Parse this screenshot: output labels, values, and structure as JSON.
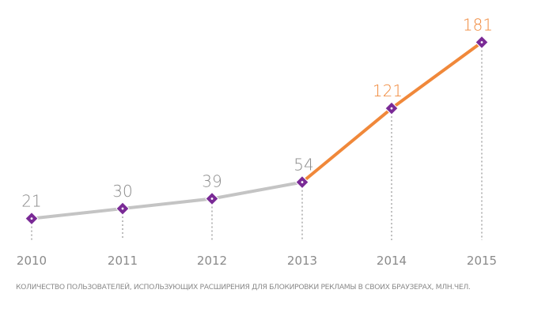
{
  "chart_data": {
    "type": "line",
    "x": [
      "2010",
      "2011",
      "2012",
      "2013",
      "2014",
      "2015"
    ],
    "values": [
      21,
      30,
      39,
      54,
      121,
      181
    ],
    "data_labels": [
      "21",
      "30",
      "39",
      "54",
      "121",
      "181"
    ],
    "segment_colors": {
      "historical": "#c4c4c4",
      "growth": "#f0883a"
    },
    "label_colors": {
      "historical": "#8a8a8a",
      "growth": "#f0883a"
    },
    "marker_color": "#7a2a96",
    "tick_color": "#8a8a8a",
    "grid": false,
    "legend": "none",
    "caption": "КОЛИЧЕСТВО ПОЛЬЗОВАТЕЛЕЙ, ИСПОЛЬЗУЮЩИХ РАСШИРЕНИЯ ДЛЯ БЛОКИРОВКИ РЕКЛАМЫ В СВОИХ БРАУЗЕРАХ, МЛН.ЧЕЛ."
  }
}
